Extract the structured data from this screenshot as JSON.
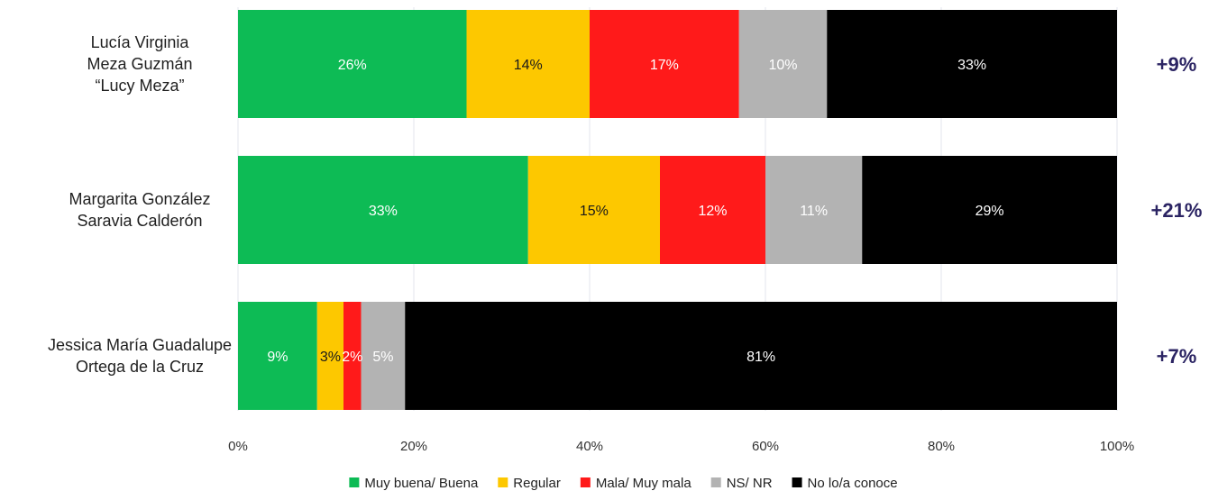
{
  "chart_data": {
    "type": "bar",
    "orientation": "horizontal",
    "stacked": true,
    "categories": [
      [
        "Lucía Virginia",
        "Meza Guzmán",
        "“Lucy Meza”"
      ],
      [
        "Margarita González",
        "Saravia Calderón"
      ],
      [
        "Jessica María Guadalupe",
        "Ortega de la Cruz"
      ]
    ],
    "series": [
      {
        "name": "Muy buena/ Buena",
        "color": "#0dbb55",
        "text_color": "#ffffff",
        "values": [
          26,
          33,
          9
        ],
        "labels": [
          "26%",
          "33%",
          "9%"
        ]
      },
      {
        "name": "Regular",
        "color": "#fdc800",
        "text_color": "#1a1a1a",
        "values": [
          14,
          15,
          3
        ],
        "labels": [
          "14%",
          "15%",
          "3%"
        ]
      },
      {
        "name": "Mala/ Muy mala",
        "color": "#ff1a1a",
        "text_color": "#ffffff",
        "values": [
          17,
          12,
          2
        ],
        "labels": [
          "17%",
          "12%",
          "2%"
        ]
      },
      {
        "name": "NS/ NR",
        "color": "#b3b3b3",
        "text_color": "#ffffff",
        "values": [
          10,
          11,
          5
        ],
        "labels": [
          "10%",
          "11%",
          "5%"
        ]
      },
      {
        "name": "No lo/a conoce",
        "color": "#000000",
        "text_color": "#ffffff",
        "values": [
          33,
          29,
          81
        ],
        "labels": [
          "33%",
          "29%",
          "81%"
        ]
      }
    ],
    "net_values": [
      "+9%",
      "+21%",
      "+7%"
    ],
    "xlim": [
      0,
      100
    ],
    "xticks": [
      "0%",
      "20%",
      "40%",
      "60%",
      "80%",
      "100%"
    ],
    "grid": true,
    "legend_position": "bottom"
  }
}
